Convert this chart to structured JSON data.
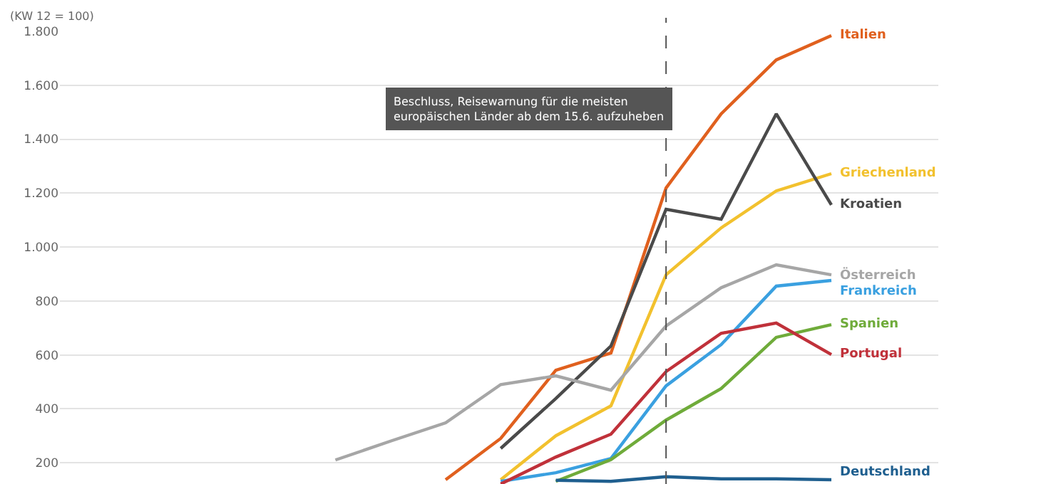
{
  "chart_data": {
    "type": "line",
    "ylabel": "(KW 12 = 100)",
    "categories": [
      null,
      null,
      null,
      null,
      null,
      null,
      null,
      null,
      null,
      null,
      null,
      null,
      null,
      null,
      null
    ],
    "series": [
      {
        "name": "Italien",
        "color": "#e0601e",
        "values": [
          null,
          null,
          null,
          null,
          null,
          null,
          null,
          137,
          290,
          543,
          607,
          1219,
          1494,
          1694,
          1784
        ]
      },
      {
        "name": "Griechenland",
        "color": "#f2c12e",
        "values": [
          null,
          null,
          null,
          null,
          null,
          null,
          null,
          null,
          137,
          300,
          411,
          897,
          1071,
          1208,
          1272
        ]
      },
      {
        "name": "Kroatien",
        "color": "#4a4a4a",
        "values": [
          null,
          null,
          null,
          null,
          null,
          null,
          null,
          null,
          253,
          438,
          633,
          1140,
          1103,
          1494,
          1156
        ]
      },
      {
        "name": "Österreich",
        "color": "#a6a6a6",
        "values": [
          null,
          null,
          null,
          null,
          null,
          210,
          280,
          348,
          490,
          522,
          469,
          707,
          849,
          934,
          897
        ]
      },
      {
        "name": "Frankreich",
        "color": "#3aa0e0",
        "values": [
          null,
          null,
          null,
          null,
          null,
          null,
          null,
          null,
          131,
          163,
          216,
          485,
          638,
          855,
          876
        ]
      },
      {
        "name": "Spanien",
        "color": "#6fab3a",
        "values": [
          null,
          null,
          null,
          null,
          null,
          null,
          null,
          null,
          null,
          131,
          211,
          358,
          475,
          665,
          712
        ]
      },
      {
        "name": "Portugal",
        "color": "#c0313a",
        "values": [
          null,
          null,
          null,
          null,
          null,
          null,
          null,
          null,
          121,
          221,
          306,
          538,
          680,
          718,
          601
        ]
      },
      {
        "name": "Deutschland",
        "color": "#1f5f8f",
        "values": [
          null,
          null,
          null,
          null,
          null,
          null,
          null,
          null,
          null,
          135,
          131,
          148,
          140,
          140,
          137
        ]
      }
    ],
    "ylim": [
      121,
      1800
    ],
    "yticks": [
      {
        "value": 200,
        "label": "200"
      },
      {
        "value": 400,
        "label": "400"
      },
      {
        "value": 600,
        "label": "600"
      },
      {
        "value": 800,
        "label": "800"
      },
      {
        "value": 1000,
        "label": "1.000"
      },
      {
        "value": 1200,
        "label": "1.200"
      },
      {
        "value": 1400,
        "label": "1.400"
      },
      {
        "value": 1600,
        "label": "1.600"
      },
      {
        "value": 1800,
        "label": "1.800"
      }
    ],
    "grid": "y",
    "legend": false,
    "tick_labels": "y",
    "marker": "none",
    "line_style": "solid",
    "annotations": [
      "Beschluss, Reisewarnung für die meisten europäischen Länder ab dem 15.6. aufzuheben"
    ]
  }
}
